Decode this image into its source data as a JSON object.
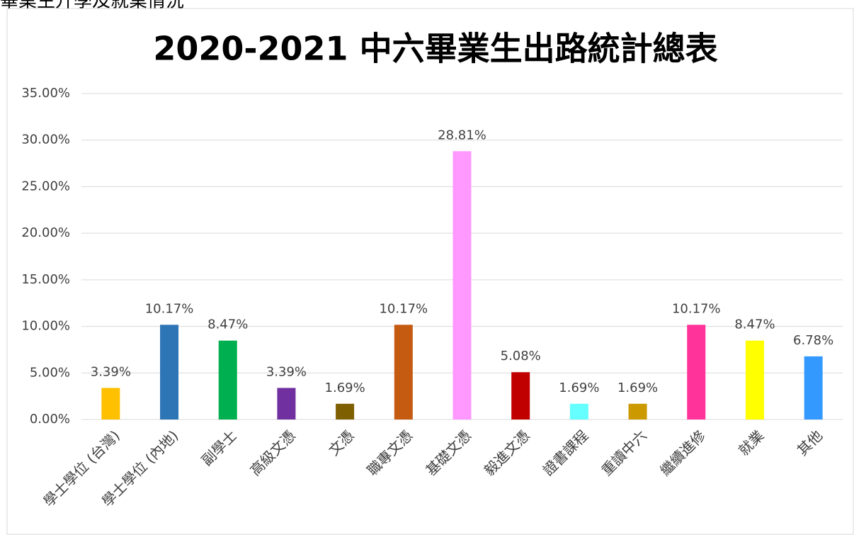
{
  "page_header": "畢業生升學及就業情況",
  "chart_data": {
    "type": "bar",
    "title": "2020-2021 中六畢業生出路統計總表",
    "categories": [
      "學士學位 (台灣)",
      "學士學位 (內地)",
      "副學士",
      "高級文憑",
      "文憑",
      "職專文憑",
      "基礎文憑",
      "毅進文憑",
      "證書課程",
      "重讀中六",
      "繼續進修",
      "就業",
      "其他"
    ],
    "values": [
      3.39,
      10.17,
      8.47,
      3.39,
      1.69,
      10.17,
      28.81,
      5.08,
      1.69,
      1.69,
      10.17,
      8.47,
      6.78
    ],
    "value_labels": [
      "3.39%",
      "10.17%",
      "8.47%",
      "3.39%",
      "1.69%",
      "10.17%",
      "28.81%",
      "5.08%",
      "1.69%",
      "1.69%",
      "10.17%",
      "8.47%",
      "6.78%"
    ],
    "colors": [
      "#ffc000",
      "#2e75b6",
      "#00b050",
      "#7030a0",
      "#7f6000",
      "#c55a11",
      "#ff99ff",
      "#c00000",
      "#66ffff",
      "#cc9900",
      "#ff3399",
      "#ffff00",
      "#3399ff"
    ],
    "ylim": [
      0,
      35
    ],
    "yticks": [
      {
        "value": 0,
        "label": "0.00%"
      },
      {
        "value": 5,
        "label": "5.00%"
      },
      {
        "value": 10,
        "label": "10.00%"
      },
      {
        "value": 15,
        "label": "15.00%"
      },
      {
        "value": 20,
        "label": "20.00%"
      },
      {
        "value": 25,
        "label": "25.00%"
      },
      {
        "value": 30,
        "label": "30.00%"
      },
      {
        "value": 35,
        "label": "35.00%"
      }
    ],
    "grid": true
  }
}
